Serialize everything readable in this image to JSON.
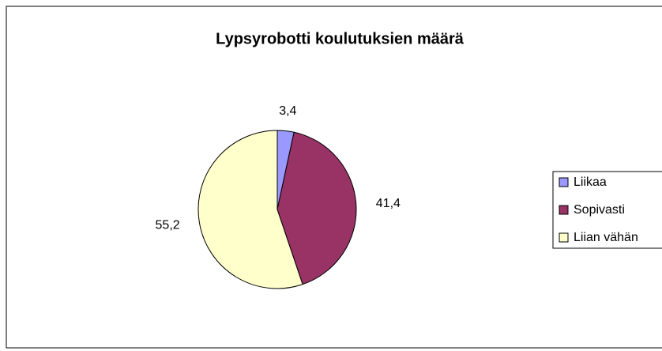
{
  "chart_data": {
    "type": "pie",
    "title": "Lypsyrobotti koulutuksien määrä",
    "categories": [
      "Liikaa",
      "Sopivasti",
      "Liian vähän"
    ],
    "values": [
      3.4,
      41.4,
      55.2
    ],
    "value_labels": [
      "3,4",
      "41,4",
      "55,2"
    ],
    "colors": [
      "#9999ff",
      "#993366",
      "#ffffcc"
    ],
    "legend": "right"
  }
}
